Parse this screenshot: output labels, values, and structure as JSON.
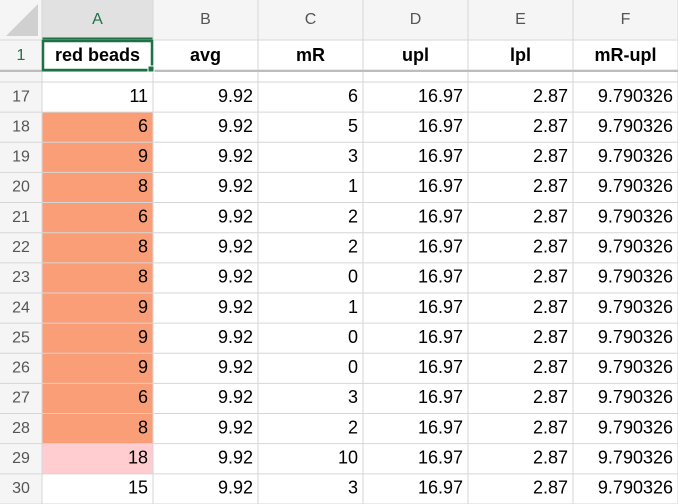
{
  "column_headers": [
    "A",
    "B",
    "C",
    "D",
    "E",
    "F"
  ],
  "header_row": {
    "number": "1",
    "cells": [
      "red beads",
      "avg",
      "mR",
      "upl",
      "lpl",
      "mR-upl"
    ]
  },
  "rows": [
    {
      "number": "17",
      "cells": [
        "11",
        "9.92",
        "6",
        "16.97",
        "2.87",
        "9.790326"
      ]
    },
    {
      "number": "18",
      "cells": [
        "6",
        "9.92",
        "5",
        "16.97",
        "2.87",
        "9.790326"
      ],
      "fill": "#fa9e78"
    },
    {
      "number": "19",
      "cells": [
        "9",
        "9.92",
        "3",
        "16.97",
        "2.87",
        "9.790326"
      ],
      "fill": "#fa9e78"
    },
    {
      "number": "20",
      "cells": [
        "8",
        "9.92",
        "1",
        "16.97",
        "2.87",
        "9.790326"
      ],
      "fill": "#fa9e78"
    },
    {
      "number": "21",
      "cells": [
        "6",
        "9.92",
        "2",
        "16.97",
        "2.87",
        "9.790326"
      ],
      "fill": "#fa9e78"
    },
    {
      "number": "22",
      "cells": [
        "8",
        "9.92",
        "2",
        "16.97",
        "2.87",
        "9.790326"
      ],
      "fill": "#fa9e78"
    },
    {
      "number": "23",
      "cells": [
        "8",
        "9.92",
        "0",
        "16.97",
        "2.87",
        "9.790326"
      ],
      "fill": "#fa9e78"
    },
    {
      "number": "24",
      "cells": [
        "9",
        "9.92",
        "1",
        "16.97",
        "2.87",
        "9.790326"
      ],
      "fill": "#fa9e78"
    },
    {
      "number": "25",
      "cells": [
        "9",
        "9.92",
        "0",
        "16.97",
        "2.87",
        "9.790326"
      ],
      "fill": "#fa9e78"
    },
    {
      "number": "26",
      "cells": [
        "9",
        "9.92",
        "0",
        "16.97",
        "2.87",
        "9.790326"
      ],
      "fill": "#fa9e78"
    },
    {
      "number": "27",
      "cells": [
        "6",
        "9.92",
        "3",
        "16.97",
        "2.87",
        "9.790326"
      ],
      "fill": "#fa9e78"
    },
    {
      "number": "28",
      "cells": [
        "8",
        "9.92",
        "2",
        "16.97",
        "2.87",
        "9.790326"
      ],
      "fill": "#fa9e78"
    },
    {
      "number": "29",
      "cells": [
        "18",
        "9.92",
        "10",
        "16.97",
        "2.87",
        "9.790326"
      ],
      "fill": "#ffccd0"
    },
    {
      "number": "30",
      "cells": [
        "15",
        "9.92",
        "3",
        "16.97",
        "2.87",
        "9.790326"
      ]
    }
  ]
}
